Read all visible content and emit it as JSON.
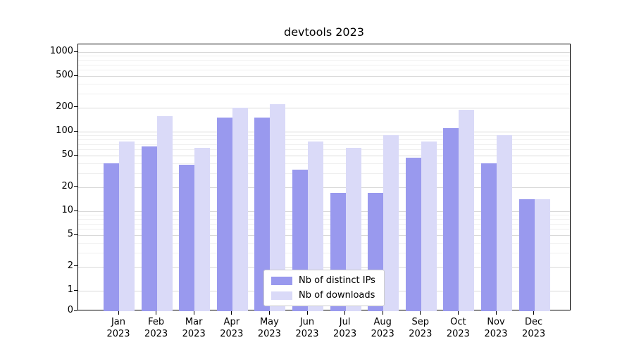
{
  "chart_data": {
    "type": "bar",
    "title": "devtools 2023",
    "year": "2023",
    "categories": [
      "Jan",
      "Feb",
      "Mar",
      "Apr",
      "May",
      "Jun",
      "Jul",
      "Aug",
      "Sep",
      "Oct",
      "Nov",
      "Dec"
    ],
    "series": [
      {
        "name": "Nb of distinct IPs",
        "color": "#9999ee",
        "values": [
          40,
          65,
          38,
          150,
          150,
          33,
          17,
          17,
          47,
          110,
          40,
          14
        ]
      },
      {
        "name": "Nb of downloads",
        "color": "#dadaf8",
        "values": [
          75,
          155,
          62,
          200,
          220,
          75,
          62,
          90,
          75,
          190,
          90,
          14
        ]
      }
    ],
    "yscale": "symlog",
    "yticks": [
      0,
      1,
      2,
      5,
      10,
      20,
      50,
      100,
      200,
      500,
      1000
    ],
    "yticks_minor": [
      3,
      4,
      6,
      7,
      8,
      9,
      30,
      40,
      60,
      70,
      80,
      90,
      300,
      400,
      600,
      700,
      800,
      900
    ],
    "ylim": [
      0,
      1200
    ],
    "grid": true,
    "legend_position": "lower center"
  }
}
